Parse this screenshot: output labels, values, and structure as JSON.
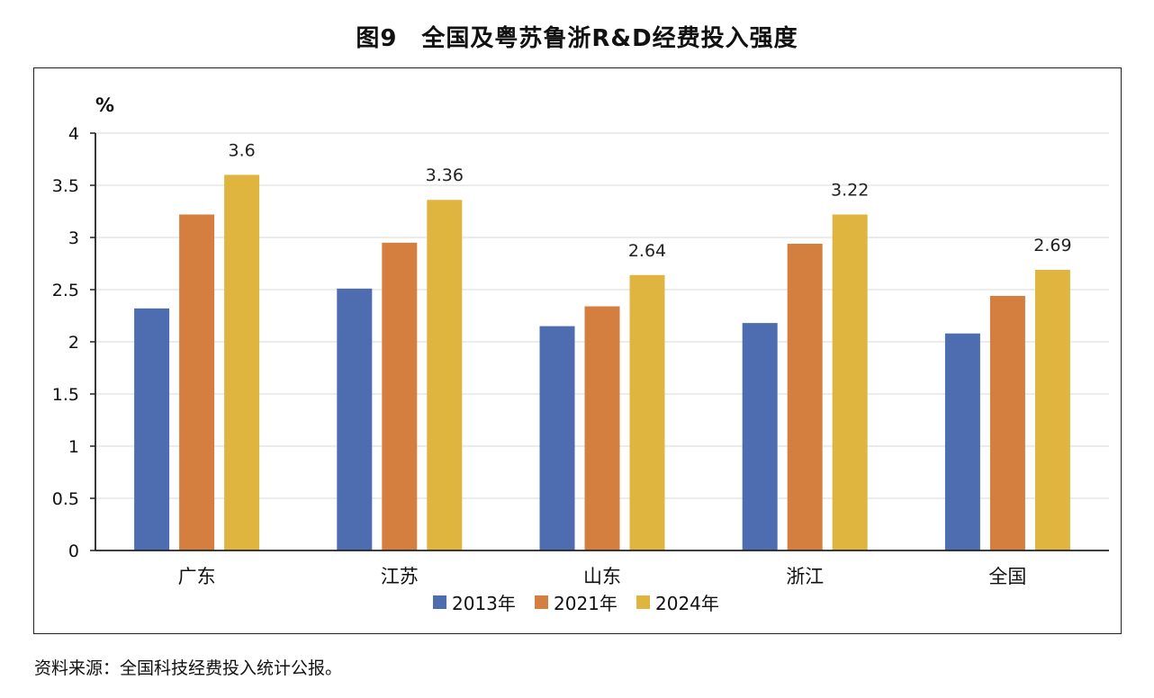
{
  "title": "图9　全国及粤苏鲁浙R&D经费投入强度",
  "source_note": "资料来源：全国科技经费投入统计公报。",
  "chart_data": {
    "type": "bar",
    "ylabel": "%",
    "ylim": [
      0,
      4
    ],
    "yticks": [
      0,
      0.5,
      1,
      1.5,
      2,
      2.5,
      3,
      3.5,
      4
    ],
    "ytick_labels": [
      "0",
      "0.5",
      "1",
      "1.5",
      "2",
      "2.5",
      "3",
      "3.5",
      "4"
    ],
    "grid": true,
    "legend_position": "bottom",
    "categories": [
      "广东",
      "江苏",
      "山东",
      "浙江",
      "全国"
    ],
    "series": [
      {
        "name": "2013年",
        "color": "#4e6db0",
        "values": [
          2.32,
          2.51,
          2.15,
          2.18,
          2.08
        ],
        "labels": [
          "",
          "",
          "",
          "",
          ""
        ]
      },
      {
        "name": "2021年",
        "color": "#d47f3f",
        "values": [
          3.22,
          2.95,
          2.34,
          2.94,
          2.44
        ],
        "labels": [
          "",
          "",
          "",
          "",
          ""
        ]
      },
      {
        "name": "2024年",
        "color": "#e0b53f",
        "values": [
          3.6,
          3.36,
          2.64,
          3.22,
          2.69
        ],
        "labels": [
          "3.6",
          "3.36",
          "2.64",
          "3.22",
          "2.69"
        ]
      }
    ]
  }
}
